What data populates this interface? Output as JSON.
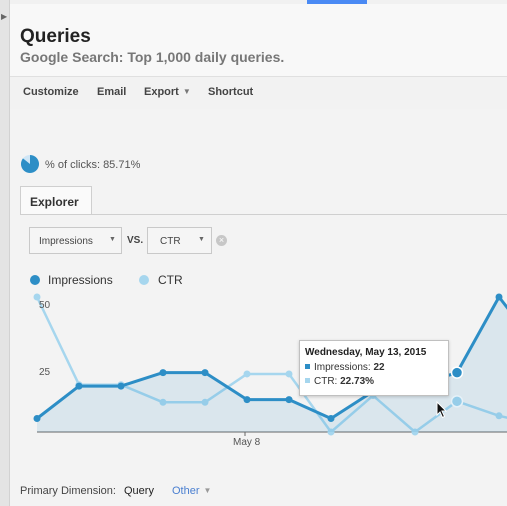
{
  "header": {
    "title": "Queries",
    "subtitle": "Google Search: Top 1,000 daily queries."
  },
  "toolbar": {
    "customize": "Customize",
    "email": "Email",
    "export": "Export",
    "shortcut": "Shortcut"
  },
  "summary": {
    "clicks_label": "% of clicks: 85.71%",
    "clicks_percent": 85.71
  },
  "explorer": {
    "tab_label": "Explorer",
    "metric_1": "Impressions",
    "vs_label": "VS.",
    "metric_2": "CTR"
  },
  "legend": {
    "impressions": "Impressions",
    "ctr": "CTR"
  },
  "colors": {
    "impressions": "#2d8ec6",
    "ctr": "#a6d6ee",
    "accent": "#4a8af4"
  },
  "chart_data": {
    "type": "line",
    "x_tick_labels": [
      "May 8"
    ],
    "y_tick_labels": [
      "50",
      "25"
    ],
    "ylim": [
      0,
      50
    ],
    "grid": false,
    "legend_position": "top-left",
    "series": [
      {
        "name": "Impressions",
        "axis": "left",
        "values": [
          5,
          17,
          17,
          22,
          22,
          12,
          12,
          5,
          15,
          17,
          22,
          50,
          30
        ]
      },
      {
        "name": "CTR",
        "axis": "right",
        "values": [
          100,
          35,
          35,
          22,
          22,
          43,
          43,
          0,
          27,
          0,
          22.73,
          12,
          5
        ]
      }
    ],
    "tooltip": {
      "date": "Wednesday, May 13, 2015",
      "impressions_label": "Impressions:",
      "impressions_value": "22",
      "ctr_label": "CTR:",
      "ctr_value": "22.73%"
    }
  },
  "primary_dimension": {
    "label": "Primary Dimension:",
    "active": "Query",
    "other": "Other"
  }
}
